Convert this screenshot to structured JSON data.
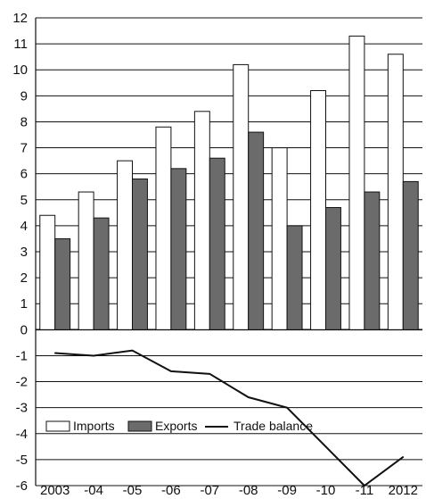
{
  "chart_data": {
    "type": "bar",
    "title": "",
    "xlabel": "",
    "ylabel": "",
    "categories": [
      "2003",
      "-04",
      "-05",
      "-06",
      "-07",
      "-08",
      "-09",
      "-10",
      "-11",
      "2012"
    ],
    "ylim": [
      -6,
      12
    ],
    "yticks": [
      12,
      11,
      10,
      9,
      8,
      7,
      6,
      5,
      4,
      3,
      2,
      1,
      0,
      -1,
      -2,
      -3,
      -4,
      -5,
      -6
    ],
    "grid": true,
    "legend_position": "bottom-left",
    "series": [
      {
        "name": "Imports",
        "kind": "bar",
        "color": "#ffffff",
        "values": [
          4.4,
          5.3,
          6.5,
          7.8,
          8.4,
          10.2,
          7.0,
          9.2,
          11.3,
          10.6
        ]
      },
      {
        "name": "Exports",
        "kind": "bar",
        "color": "#6b6b6b",
        "values": [
          3.5,
          4.3,
          5.8,
          6.2,
          6.6,
          7.6,
          4.0,
          4.7,
          5.3,
          5.7
        ]
      },
      {
        "name": "Trade balance",
        "kind": "line",
        "color": "#111111",
        "values": [
          -0.9,
          -1.0,
          -0.8,
          -1.6,
          -1.7,
          -2.6,
          -3.0,
          -4.5,
          -6.0,
          -4.9
        ]
      }
    ]
  }
}
